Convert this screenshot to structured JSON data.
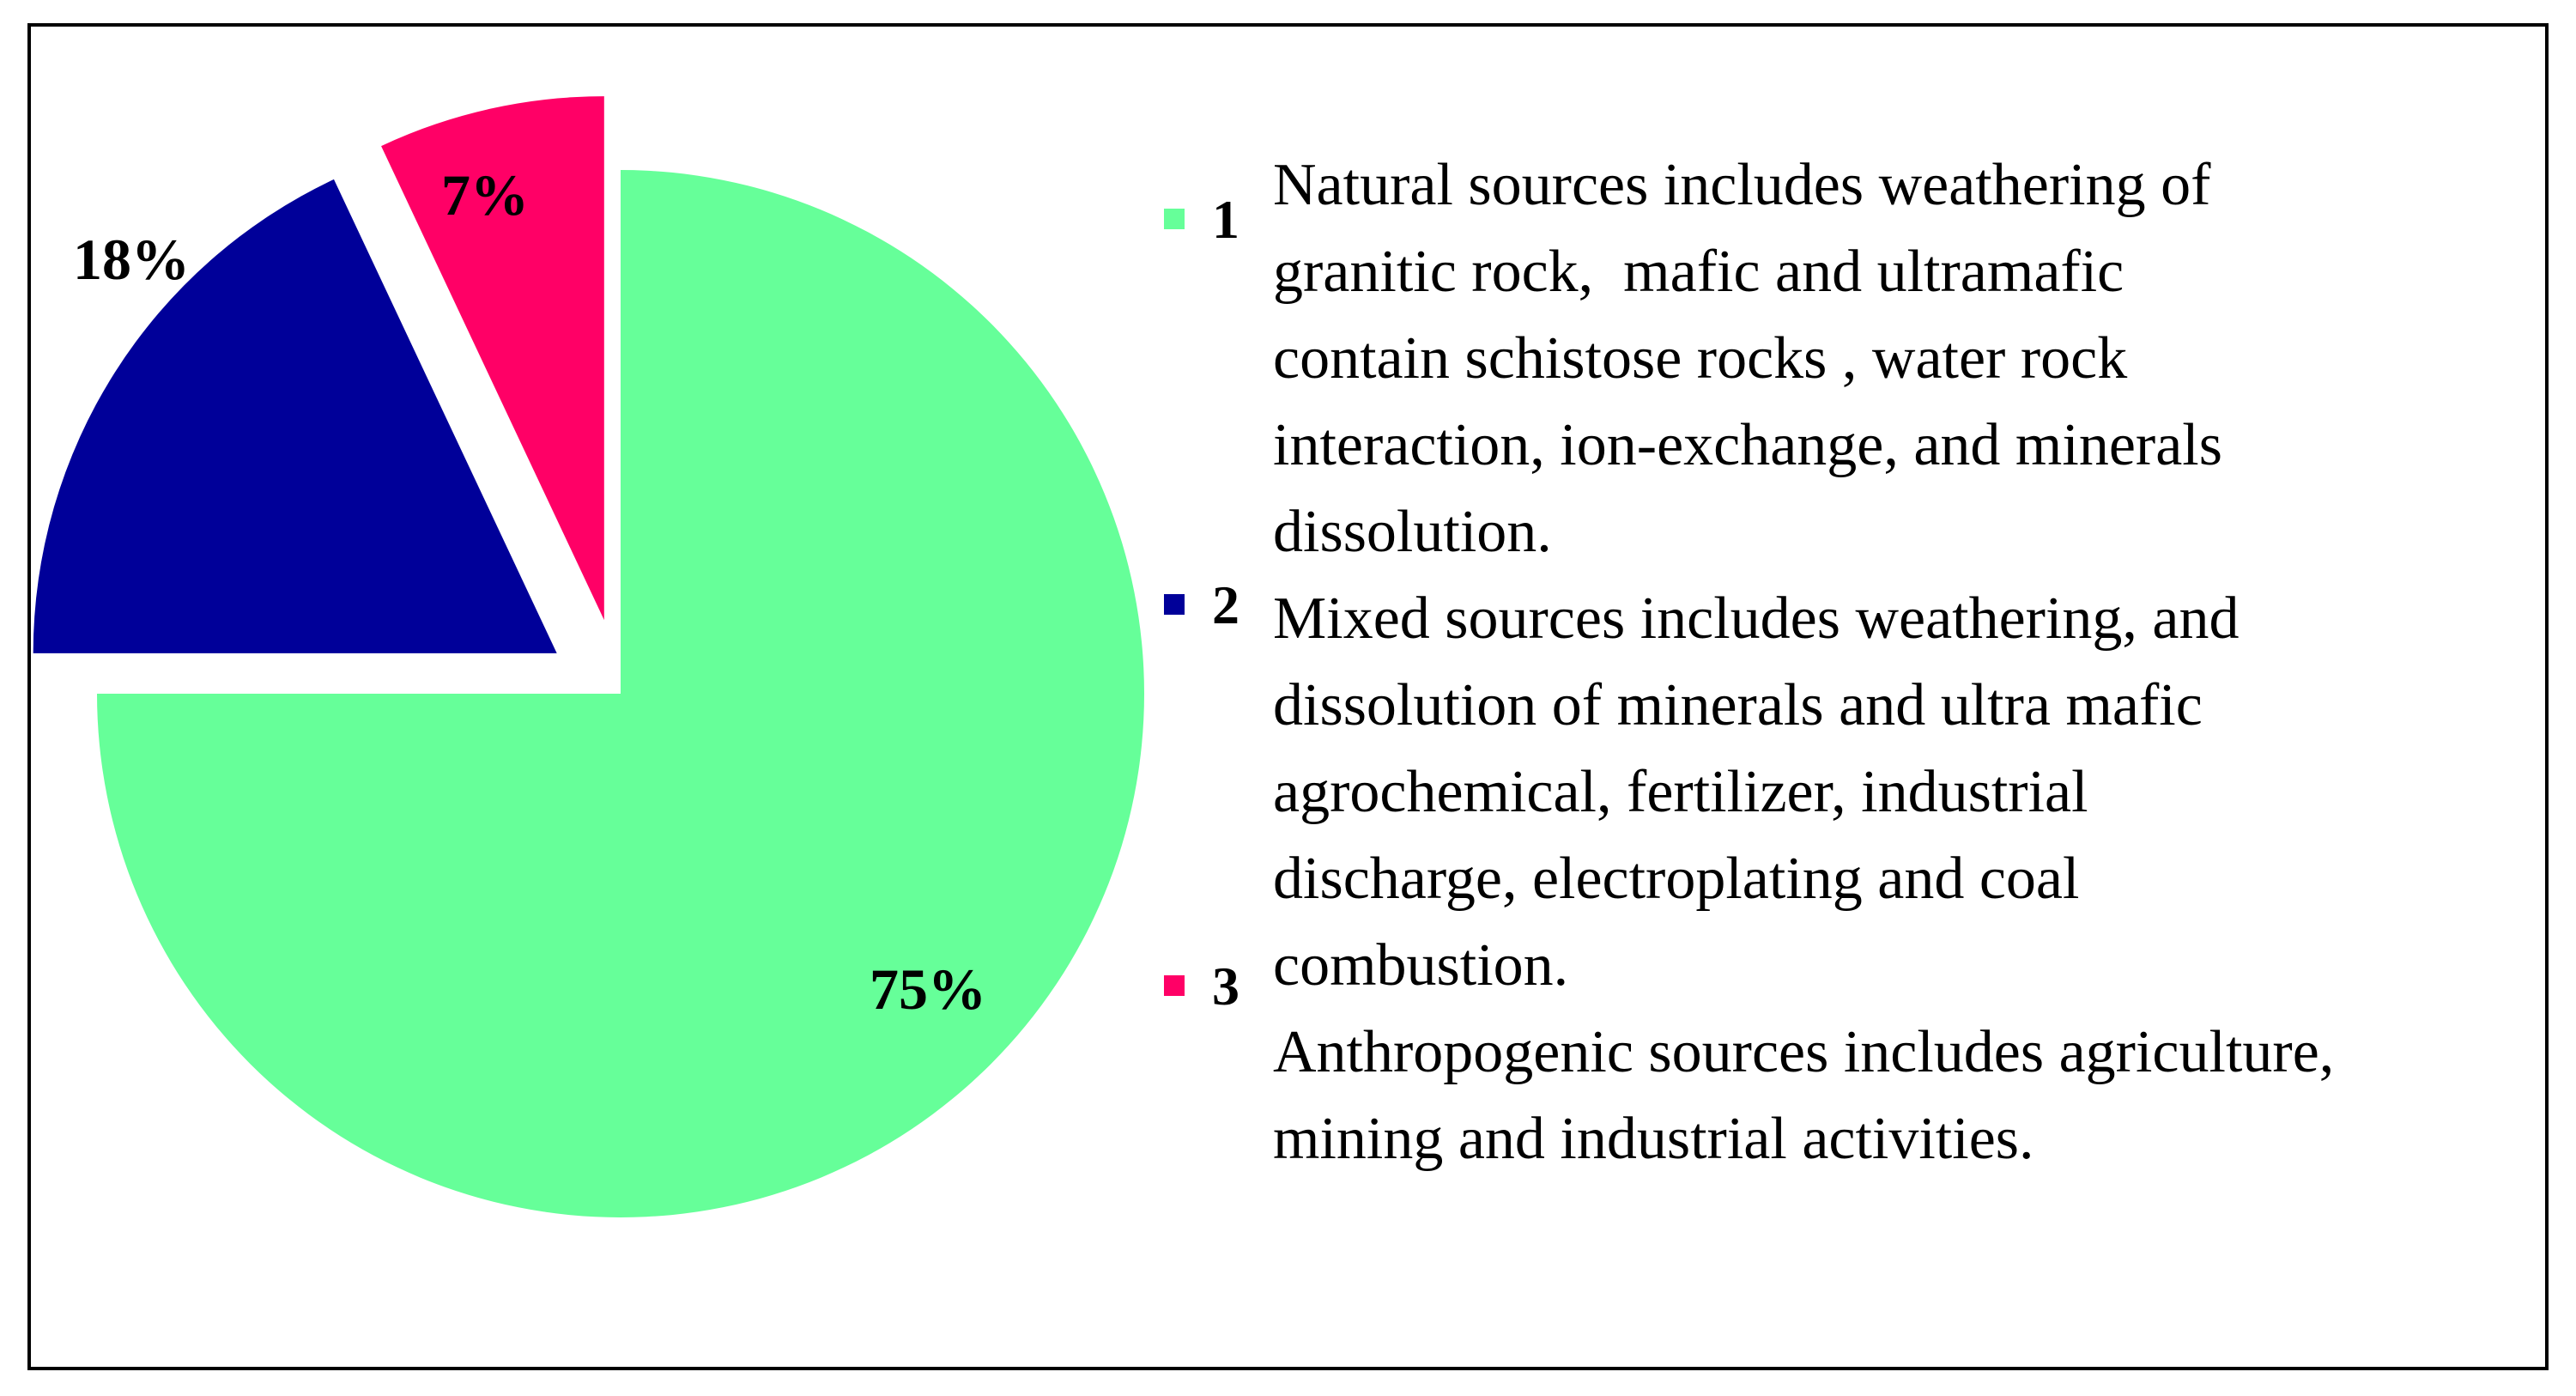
{
  "chart_data": {
    "type": "pie",
    "categories": [
      "1",
      "2",
      "3"
    ],
    "values": [
      75,
      18,
      7
    ],
    "value_labels": [
      "75%",
      "18%",
      "7%"
    ],
    "colors": [
      "#66ff99",
      "#000099",
      "#ff0066"
    ],
    "descriptions": [
      [
        "Natural sources includes weathering of",
        "granitic rock,  mafic and ultramafic",
        "contain schistose rocks , water rock",
        "interaction, ion-exchange, and minerals",
        "dissolution."
      ],
      [
        "Mixed sources includes weathering, and",
        "dissolution of minerals and ultra mafic",
        "agrochemical, fertilizer, industrial",
        "discharge, electroplating and coal",
        "combustion."
      ],
      [
        "Anthropogenic sources includes agriculture,",
        "mining and industrial activities."
      ]
    ]
  }
}
